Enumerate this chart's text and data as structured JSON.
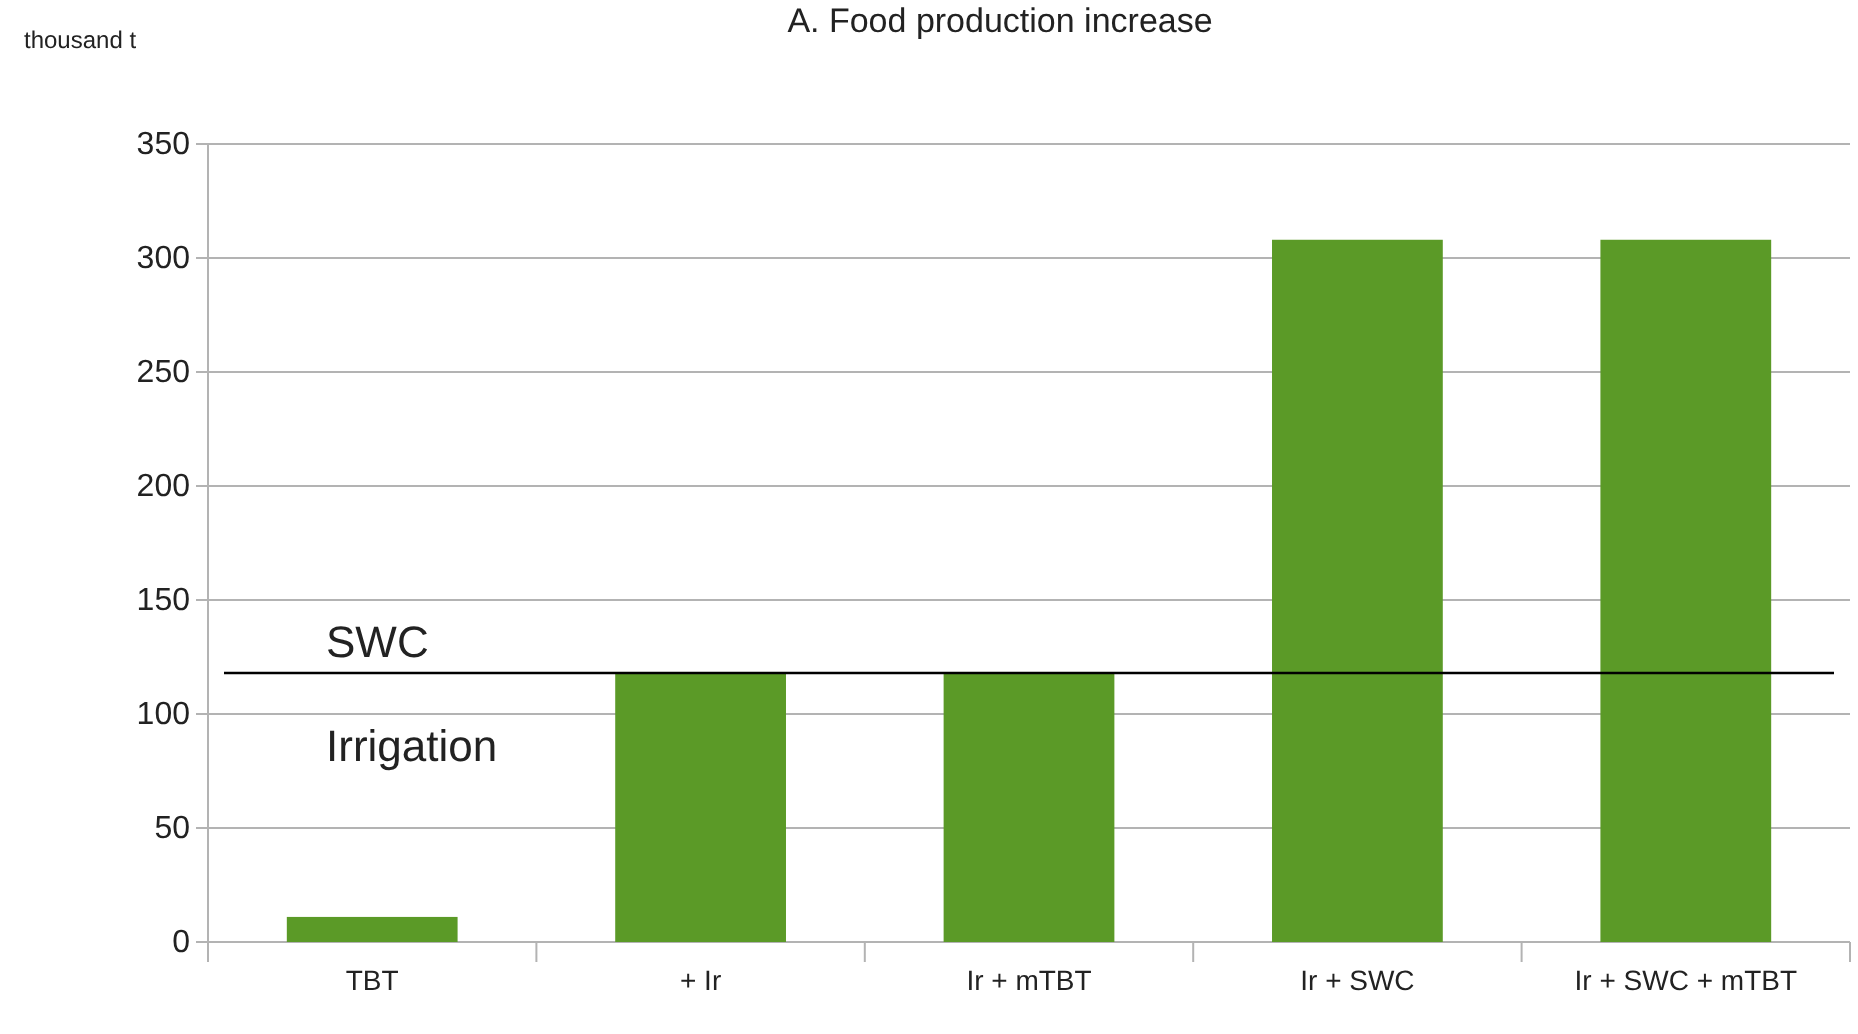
{
  "chart_data": {
    "type": "bar",
    "title": "A. Food production increase",
    "ylabel": "thousand t",
    "categories": [
      "TBT",
      "+ Ir",
      "Ir + mTBT",
      "Ir + SWC",
      "Ir + SWC + mTBT"
    ],
    "values": [
      11,
      118,
      118,
      308,
      308
    ],
    "color": "#5b9a27",
    "ylim": [
      0,
      350
    ],
    "yticks": [
      0,
      50,
      100,
      150,
      200,
      250,
      300,
      350
    ],
    "grid": "y",
    "ref_lines": [
      {
        "axis": "y",
        "value": 118,
        "color": "#000000"
      }
    ],
    "annotations": [
      "SWC",
      "Irrigation"
    ]
  }
}
